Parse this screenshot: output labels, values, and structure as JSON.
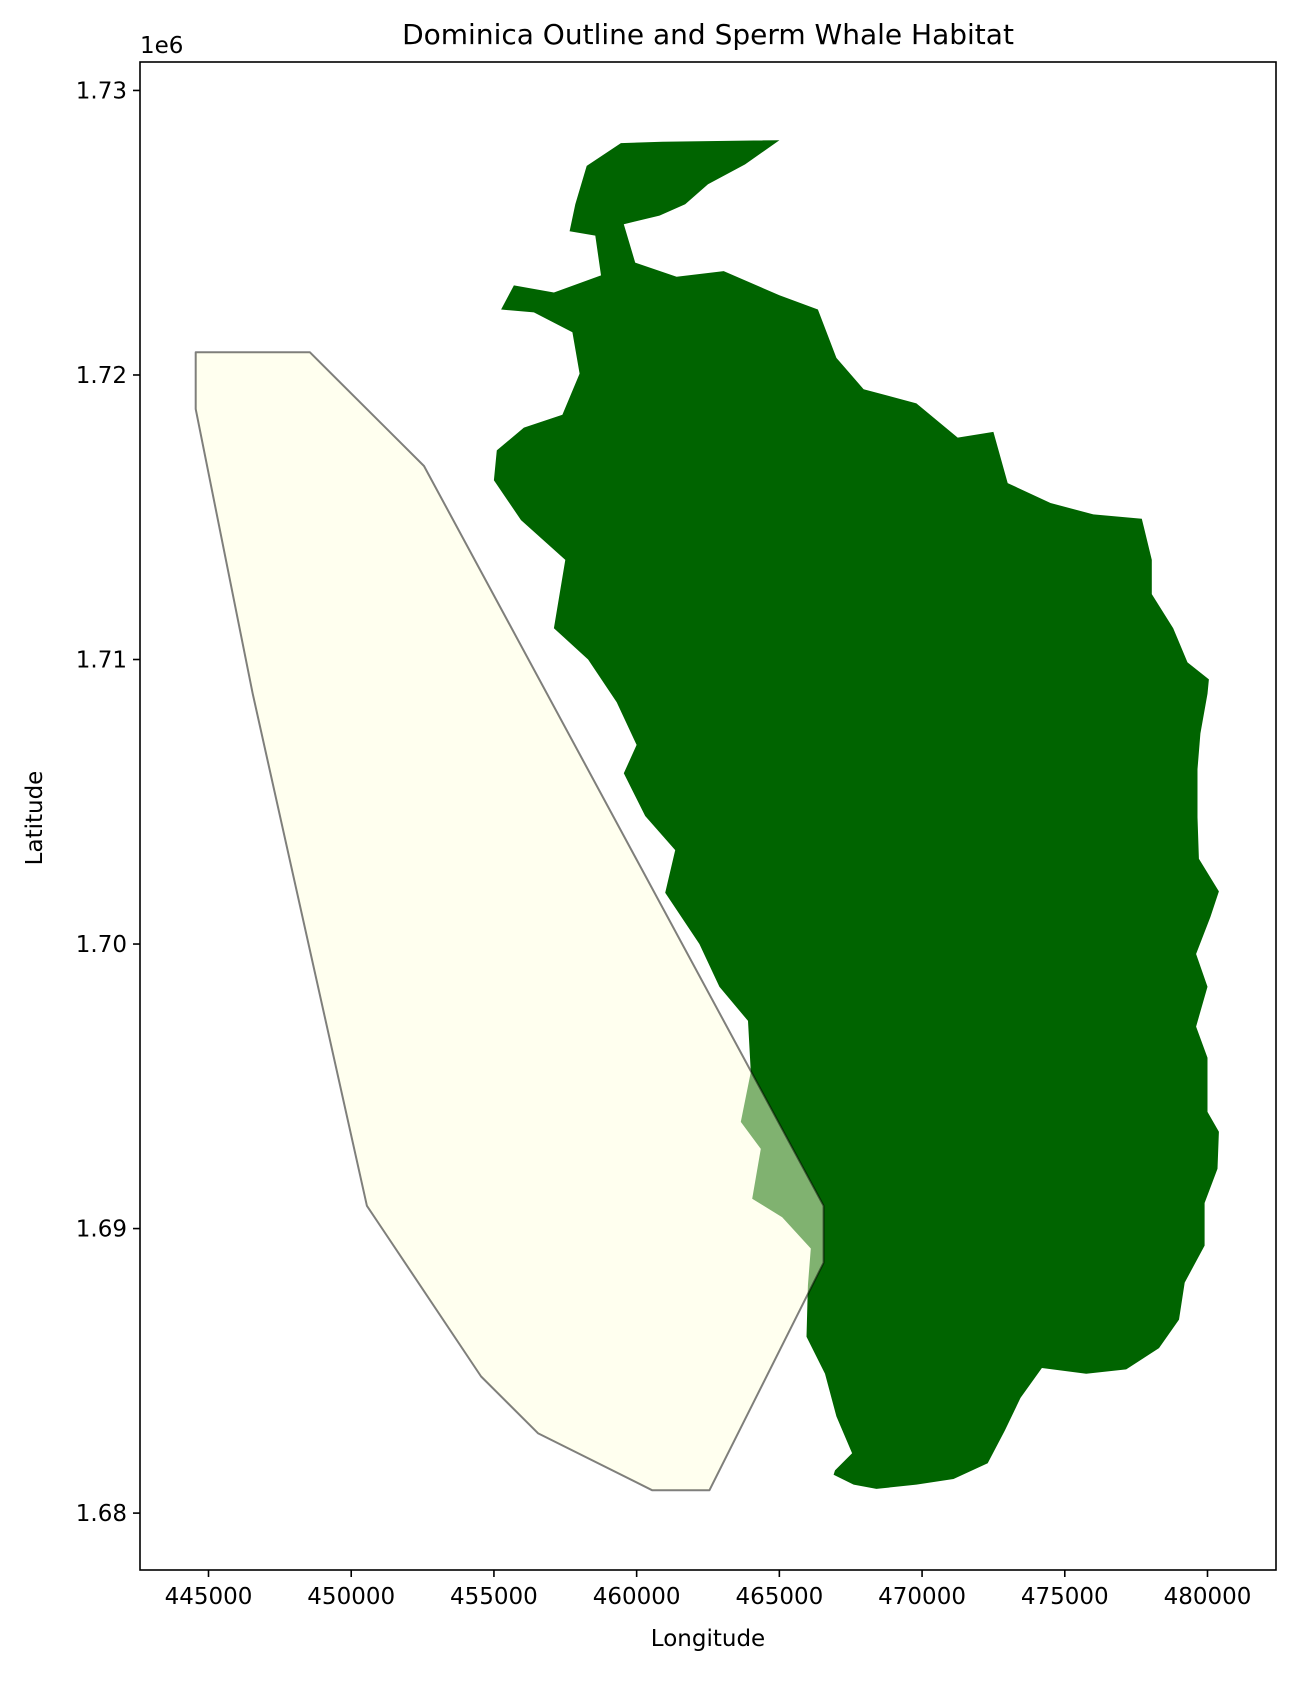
{
  "chart_data": {
    "type": "map",
    "title": "Dominica Outline and Sperm Whale Habitat",
    "xlabel": "Longitude",
    "ylabel": "Latitude",
    "y_offset_label": "1e6",
    "xlim": [
      442600,
      482400
    ],
    "ylim": [
      1678000,
      1731000
    ],
    "x_ticks": [
      445000,
      450000,
      455000,
      460000,
      465000,
      470000,
      475000,
      480000
    ],
    "x_tick_labels": [
      "445000",
      "450000",
      "455000",
      "460000",
      "465000",
      "470000",
      "475000",
      "480000"
    ],
    "y_ticks": [
      1680000,
      1690000,
      1700000,
      1710000,
      1720000,
      1730000
    ],
    "y_tick_labels": [
      "1.68",
      "1.69",
      "1.70",
      "1.71",
      "1.72",
      "1.73"
    ],
    "grid": false,
    "legend": "none",
    "layers": [
      {
        "name": "",
        "kind": "island_outline",
        "fill": "#006400",
        "opacity": 1,
        "stroke": "none",
        "coords": [
          [
            465000,
            1728250
          ],
          [
            460900,
            1728200
          ],
          [
            459450,
            1728150
          ],
          [
            458250,
            1727350
          ],
          [
            457850,
            1726000
          ],
          [
            457650,
            1725050
          ],
          [
            458550,
            1724900
          ],
          [
            458750,
            1723500
          ],
          [
            457100,
            1722900
          ],
          [
            455700,
            1723150
          ],
          [
            455250,
            1722300
          ],
          [
            456400,
            1722200
          ],
          [
            457750,
            1721500
          ],
          [
            458000,
            1720050
          ],
          [
            457400,
            1718600
          ],
          [
            456050,
            1718150
          ],
          [
            455100,
            1717350
          ],
          [
            455000,
            1716300
          ],
          [
            455950,
            1714900
          ],
          [
            457500,
            1713500
          ],
          [
            457100,
            1711100
          ],
          [
            458300,
            1710000
          ],
          [
            459300,
            1708500
          ],
          [
            460000,
            1707000
          ],
          [
            459550,
            1706000
          ],
          [
            460300,
            1704500
          ],
          [
            461350,
            1703300
          ],
          [
            461000,
            1701800
          ],
          [
            462200,
            1700000
          ],
          [
            462900,
            1698500
          ],
          [
            463900,
            1697300
          ],
          [
            464000,
            1695500
          ],
          [
            463650,
            1693750
          ],
          [
            464350,
            1692800
          ],
          [
            464050,
            1691050
          ],
          [
            465100,
            1690400
          ],
          [
            466100,
            1689300
          ],
          [
            466000,
            1688000
          ],
          [
            465950,
            1686200
          ],
          [
            466600,
            1684900
          ],
          [
            467000,
            1683400
          ],
          [
            467550,
            1682100
          ],
          [
            466950,
            1681500
          ],
          [
            466900,
            1681350
          ],
          [
            467600,
            1681000
          ],
          [
            468400,
            1680850
          ],
          [
            469800,
            1681000
          ],
          [
            471100,
            1681200
          ],
          [
            472300,
            1681750
          ],
          [
            472900,
            1682900
          ],
          [
            473450,
            1684050
          ],
          [
            474200,
            1685100
          ],
          [
            475750,
            1684900
          ],
          [
            477150,
            1685050
          ],
          [
            478300,
            1685800
          ],
          [
            479000,
            1686800
          ],
          [
            479200,
            1688100
          ],
          [
            479900,
            1689400
          ],
          [
            479900,
            1690900
          ],
          [
            480350,
            1692100
          ],
          [
            480400,
            1693400
          ],
          [
            480000,
            1694100
          ],
          [
            480000,
            1696000
          ],
          [
            479600,
            1697100
          ],
          [
            480000,
            1698500
          ],
          [
            479600,
            1699650
          ],
          [
            480100,
            1700950
          ],
          [
            480400,
            1701850
          ],
          [
            479700,
            1703000
          ],
          [
            479650,
            1704450
          ],
          [
            479650,
            1706150
          ],
          [
            479750,
            1707400
          ],
          [
            480000,
            1708800
          ],
          [
            480050,
            1709300
          ],
          [
            479300,
            1709900
          ],
          [
            478800,
            1711100
          ],
          [
            478050,
            1712300
          ],
          [
            478050,
            1713500
          ],
          [
            477700,
            1714950
          ],
          [
            476000,
            1715100
          ],
          [
            474500,
            1715500
          ],
          [
            473000,
            1716200
          ],
          [
            472500,
            1718000
          ],
          [
            471250,
            1717800
          ],
          [
            469800,
            1719000
          ],
          [
            467950,
            1719500
          ],
          [
            467000,
            1720600
          ],
          [
            466350,
            1722300
          ],
          [
            465000,
            1722800
          ],
          [
            463050,
            1723650
          ],
          [
            461400,
            1723450
          ],
          [
            459950,
            1723950
          ],
          [
            459550,
            1725300
          ],
          [
            460800,
            1725600
          ],
          [
            461700,
            1726000
          ],
          [
            462500,
            1726700
          ],
          [
            463800,
            1727400
          ],
          [
            465000,
            1728250
          ]
        ]
      },
      {
        "name": "",
        "kind": "habitat_polygon",
        "fill": "#ffffe0",
        "opacity": 0.5,
        "stroke": "#000000",
        "stroke_opacity": 0.5,
        "coords": [
          [
            444550,
            1720800
          ],
          [
            448550,
            1720800
          ],
          [
            452550,
            1716800
          ],
          [
            466550,
            1690800
          ],
          [
            466550,
            1688800
          ],
          [
            462550,
            1680800
          ],
          [
            460550,
            1680800
          ],
          [
            456550,
            1682800
          ],
          [
            454550,
            1684800
          ],
          [
            450550,
            1690800
          ],
          [
            446550,
            1708800
          ],
          [
            444550,
            1718800
          ],
          [
            444550,
            1720800
          ]
        ]
      }
    ]
  }
}
